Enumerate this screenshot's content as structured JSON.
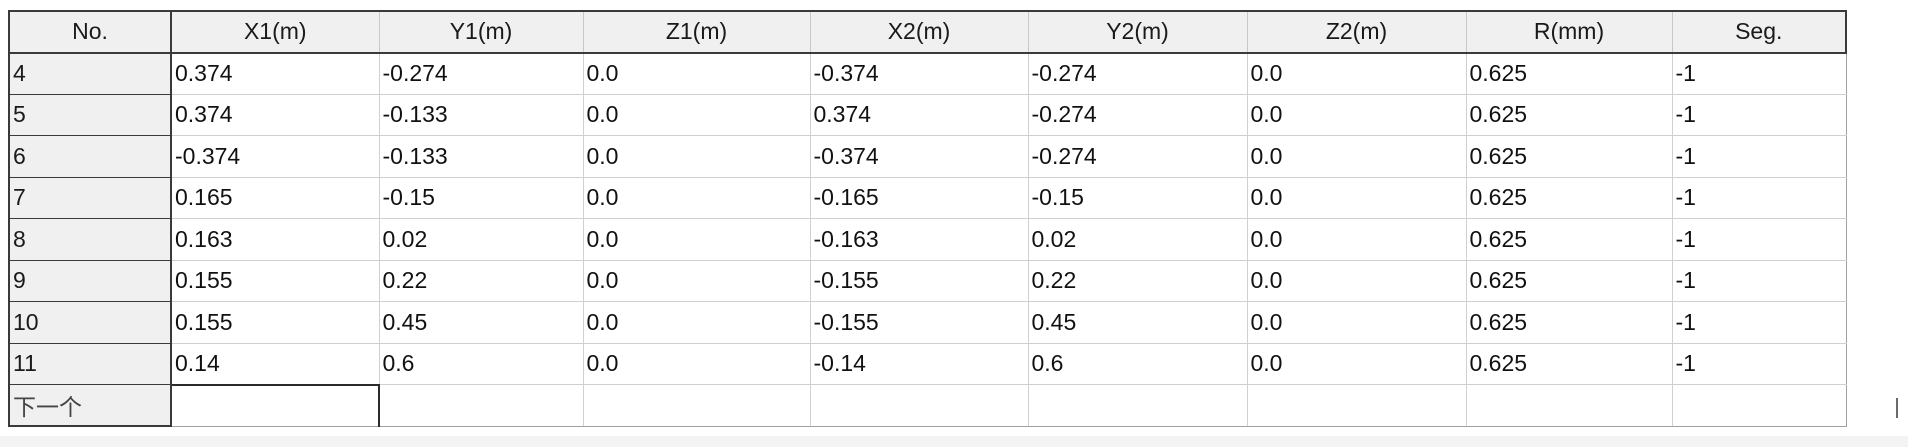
{
  "grid": {
    "columns": [
      "No.",
      "X1(m)",
      "Y1(m)",
      "Z1(m)",
      "X2(m)",
      "Y2(m)",
      "Z2(m)",
      "R(mm)",
      "Seg."
    ],
    "rows": [
      {
        "no": "4",
        "cells": [
          "0.374",
          "-0.274",
          "0.0",
          "-0.374",
          "-0.274",
          "0.0",
          "0.625",
          "-1"
        ]
      },
      {
        "no": "5",
        "cells": [
          "0.374",
          "-0.133",
          "0.0",
          "0.374",
          "-0.274",
          "0.0",
          "0.625",
          "-1"
        ]
      },
      {
        "no": "6",
        "cells": [
          "-0.374",
          "-0.133",
          "0.0",
          "-0.374",
          "-0.274",
          "0.0",
          "0.625",
          "-1"
        ]
      },
      {
        "no": "7",
        "cells": [
          "0.165",
          "-0.15",
          "0.0",
          "-0.165",
          "-0.15",
          "0.0",
          "0.625",
          "-1"
        ]
      },
      {
        "no": "8",
        "cells": [
          "0.163",
          "0.02",
          "0.0",
          "-0.163",
          "0.02",
          "0.0",
          "0.625",
          "-1"
        ]
      },
      {
        "no": "9",
        "cells": [
          "0.155",
          "0.22",
          "0.0",
          "-0.155",
          "0.22",
          "0.0",
          "0.625",
          "-1"
        ]
      },
      {
        "no": "10",
        "cells": [
          "0.155",
          "0.45",
          "0.0",
          "-0.155",
          "0.45",
          "0.0",
          "0.625",
          "-1"
        ]
      },
      {
        "no": "11",
        "cells": [
          "0.14",
          "0.6",
          "0.0",
          "-0.14",
          "0.6",
          "0.0",
          "0.625",
          "-1"
        ]
      }
    ],
    "new_row_label": "下一个",
    "new_row_cells": [
      "",
      "",
      "",
      "",
      "",
      "",
      "",
      ""
    ]
  }
}
